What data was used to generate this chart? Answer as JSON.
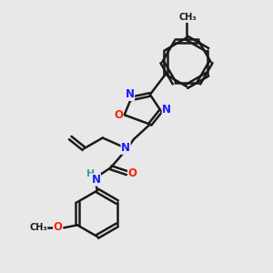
{
  "background_color": "#e8e8e8",
  "bond_color": "#1a1a1a",
  "bond_width": 1.8,
  "atom_colors": {
    "N": "#1a1aff",
    "O": "#ff2200",
    "C": "#1a1a1a",
    "H": "#4a9a9a"
  },
  "font_size_atoms": 8.5,
  "font_size_methyl": 7.0
}
